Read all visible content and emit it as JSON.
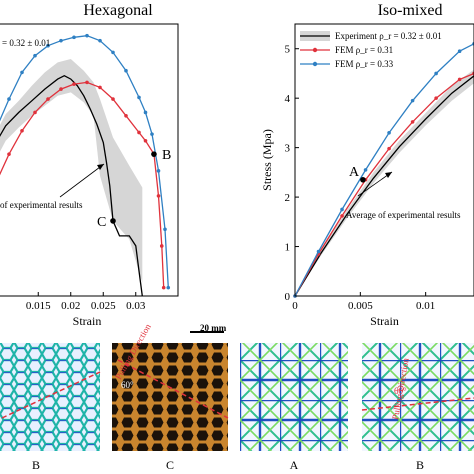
{
  "chart_data": [
    {
      "type": "line",
      "title": "Hexagonal",
      "xlabel": "Strain",
      "ylabel": "",
      "xlim": [
        0.0085,
        0.0365
      ],
      "ylim": [
        0,
        1.63
      ],
      "x_ticks": [
        "0.015",
        "0.02",
        "0.025",
        "0.03"
      ],
      "x_tick_values": [
        0.015,
        0.02,
        0.025,
        0.03
      ],
      "legend_fragment": "= 0.32 ± 0.01",
      "annotation": "of experimental results",
      "points": [
        {
          "label": "B",
          "x": 0.0328,
          "y": 0.85
        },
        {
          "label": "C",
          "x": 0.0265,
          "y": 0.45
        }
      ],
      "band": {
        "x": [
          0.0085,
          0.01,
          0.012,
          0.014,
          0.016,
          0.018,
          0.02,
          0.022,
          0.0235,
          0.0245,
          0.0265,
          0.029,
          0.031
        ],
        "upper": [
          0.98,
          1.09,
          1.17,
          1.26,
          1.34,
          1.4,
          1.42,
          1.35,
          1.28,
          1.18,
          0.95,
          0.78,
          0.65
        ],
        "lower": [
          0.82,
          0.93,
          1.01,
          1.08,
          1.14,
          1.2,
          1.22,
          1.16,
          1.08,
          0.72,
          0.45,
          0.34,
          0.08
        ]
      },
      "series": [
        {
          "color": "#000000",
          "x": [
            0.0085,
            0.01,
            0.012,
            0.014,
            0.016,
            0.018,
            0.019,
            0.02,
            0.021,
            0.022,
            0.023,
            0.024,
            0.025,
            0.0255,
            0.026,
            0.0265,
            0.0275,
            0.029,
            0.03,
            0.0305,
            0.031
          ],
          "y": [
            0.92,
            1.02,
            1.1,
            1.17,
            1.24,
            1.3,
            1.32,
            1.3,
            1.26,
            1.2,
            1.12,
            1.03,
            0.92,
            0.8,
            0.66,
            0.45,
            0.36,
            0.36,
            0.3,
            0.15,
            0.0
          ]
        },
        {
          "color": "#e0323c",
          "x": [
            0.0085,
            0.0105,
            0.0125,
            0.0145,
            0.0165,
            0.0185,
            0.0205,
            0.0225,
            0.0245,
            0.0265,
            0.0285,
            0.0305,
            0.0315,
            0.0328,
            0.0335,
            0.034,
            0.0343
          ],
          "y": [
            0.68,
            0.85,
            0.99,
            1.1,
            1.18,
            1.24,
            1.27,
            1.28,
            1.25,
            1.18,
            1.08,
            0.98,
            0.93,
            0.85,
            0.6,
            0.3,
            0.05
          ]
        },
        {
          "color": "#2f80c3",
          "x": [
            0.0085,
            0.0105,
            0.0125,
            0.0145,
            0.0165,
            0.0185,
            0.0205,
            0.0225,
            0.0245,
            0.0265,
            0.0285,
            0.0305,
            0.0315,
            0.0325,
            0.0335,
            0.0345,
            0.035
          ],
          "y": [
            1.0,
            1.18,
            1.34,
            1.44,
            1.5,
            1.53,
            1.55,
            1.56,
            1.53,
            1.46,
            1.35,
            1.19,
            1.1,
            0.97,
            0.75,
            0.4,
            0.05
          ]
        }
      ]
    },
    {
      "type": "line",
      "title": "Iso-mixed",
      "xlabel": "Strain",
      "ylabel": "Stress (Mpa)",
      "xlim": [
        0,
        0.0137
      ],
      "ylim": [
        0,
        5.5
      ],
      "x_ticks": [
        "0",
        "0.005",
        "0.01"
      ],
      "x_tick_values": [
        0,
        0.005,
        0.01
      ],
      "y_ticks": [
        "0",
        "1",
        "2",
        "3",
        "4",
        "5"
      ],
      "y_tick_values": [
        0,
        1,
        2,
        3,
        4,
        5
      ],
      "legend": [
        {
          "label": "Experiment  ρ_r = 0.32 ± 0.01",
          "color": "#000000",
          "style": "band"
        },
        {
          "label": "FEM  ρ_r = 0.31",
          "color": "#e0323c",
          "style": "line-marker"
        },
        {
          "label": "FEM  ρ_r = 0.33",
          "color": "#2f80c3",
          "style": "line-marker"
        }
      ],
      "legend_position": "top-left",
      "annotation": "Average of experimental results",
      "points": [
        {
          "label": "A",
          "x": 0.0052,
          "y": 2.35
        }
      ],
      "band": {
        "x": [
          0,
          0.002,
          0.004,
          0.006,
          0.008,
          0.01,
          0.012,
          0.0137
        ],
        "upper": [
          0,
          0.92,
          1.75,
          2.5,
          3.15,
          3.7,
          4.25,
          4.58
        ],
        "lower": [
          0,
          0.82,
          1.58,
          2.28,
          2.9,
          3.45,
          3.95,
          4.3
        ]
      },
      "series": [
        {
          "color": "#000000",
          "x": [
            0,
            0.002,
            0.004,
            0.006,
            0.008,
            0.01,
            0.012,
            0.0137
          ],
          "y": [
            0,
            0.87,
            1.66,
            2.38,
            3.02,
            3.58,
            4.1,
            4.45
          ]
        },
        {
          "color": "#e0323c",
          "x": [
            0,
            0.0018,
            0.0036,
            0.0054,
            0.0072,
            0.009,
            0.0108,
            0.0126,
            0.0137
          ],
          "y": [
            0,
            0.85,
            1.62,
            2.35,
            2.98,
            3.52,
            4.0,
            4.38,
            4.5
          ]
        },
        {
          "color": "#2f80c3",
          "x": [
            0,
            0.0018,
            0.0036,
            0.0054,
            0.0072,
            0.009,
            0.0108,
            0.0126,
            0.0137
          ],
          "y": [
            0,
            0.9,
            1.75,
            2.55,
            3.3,
            3.95,
            4.5,
            4.95,
            5.1
          ]
        }
      ]
    }
  ],
  "figure_panels": {
    "scale_bar": "20 mm",
    "pulling_direction": "Pulling Direction",
    "angle": "60°",
    "panels": [
      "B",
      "C",
      "A",
      "B"
    ]
  }
}
